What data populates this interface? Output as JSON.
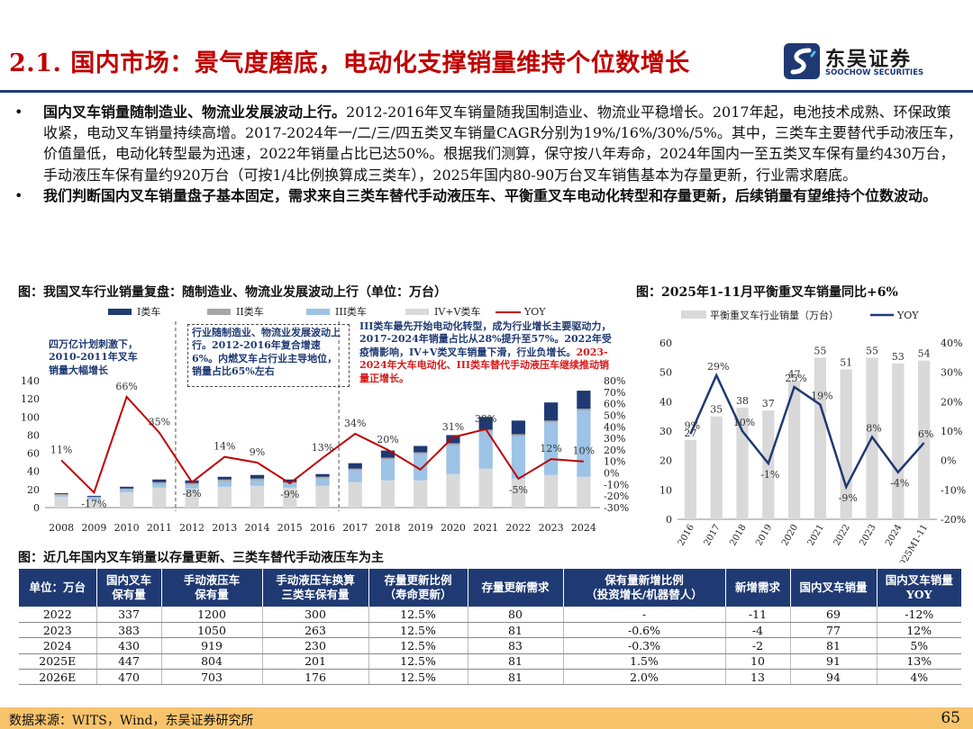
{
  "header": {
    "title": "2.1. 国内市场：景气度磨底，电动化支撑销量维持个位数增长",
    "logo_text": "东吴证券",
    "logo_sub": "SOOCHOW SECURITIES"
  },
  "bullets": [
    {
      "dot": "•",
      "bold": "国内叉车销量随制造业、物流业发展波动上行。",
      "text": "2012-2016年叉车销量随我国制造业、物流业平稳增长。2017年起，电池技术成熟、环保政策收紧，电动叉车销量持续高增。2017-2024年一/二/三/四五类叉车销量CAGR分别为19%/16%/30%/5%。其中，三类车主要替代手动液压车，价值量低，电动化转型最为迅速，2022年销量占比已达50%。根据我们测算，保守按八年寿命，2024年国内一至五类叉车保有量约430万台，手动液压车保有量约920万台（可按1/4比例换算成三类车），2025年国内80-90万台叉车销售基本为存量更新，行业需求磨底。"
    },
    {
      "dot": "•",
      "bold": "我们判断国内叉车销量盘子基本固定，需求来自三类车替代手动液压车、平衡重叉车电动化转型和存量更新，后续销量有望维持个位数波动。",
      "text": ""
    }
  ],
  "captions": {
    "left": "图：我国叉车行业销量复盘：随制造业、物流业发展波动上行（单位：万台）",
    "right": "图：2025年1-11月平衡重叉车销量同比+6%",
    "table": "图：近几年国内叉车销量以存量更新、三类车替代手动液压车为主"
  },
  "chart_data": [
    {
      "type": "bar",
      "stacked": true,
      "categories": [
        "2008",
        "2009",
        "2010",
        "2011",
        "2012",
        "2013",
        "2014",
        "2015",
        "2016",
        "2017",
        "2018",
        "2019",
        "2020",
        "2021",
        "2022",
        "2023",
        "2024"
      ],
      "series": [
        {
          "name": "IV+V类车",
          "color": "#d9d9d9",
          "values": [
            12,
            9,
            17,
            22,
            21,
            23,
            24,
            22,
            24,
            28,
            30,
            30,
            37,
            43,
            32,
            36,
            34
          ]
        },
        {
          "name": "III类车",
          "color": "#9dc3e6",
          "values": [
            2,
            2,
            3,
            4,
            4,
            6,
            6,
            5,
            8,
            13,
            23,
            29,
            32,
            41,
            47,
            58,
            73
          ]
        },
        {
          "name": "II类车",
          "color": "#a6a6a6",
          "values": [
            1,
            1,
            1,
            2,
            2,
            2,
            2,
            1,
            2,
            2,
            2,
            2,
            2,
            2,
            2,
            2,
            2
          ]
        },
        {
          "name": "I类车",
          "color": "#1f3a73",
          "values": [
            1,
            1,
            2,
            3,
            3,
            3,
            4,
            3,
            3,
            6,
            8,
            7,
            9,
            14,
            15,
            20,
            20
          ]
        }
      ],
      "line": {
        "name": "YOY",
        "color": "#c00000",
        "values": [
          11,
          -17,
          66,
          35,
          -8,
          14,
          9,
          -9,
          13,
          34,
          20,
          3,
          31,
          38,
          -5,
          12,
          10
        ],
        "labels": [
          "11%",
          "-17%",
          "66%",
          "35%",
          "-8%",
          "14%",
          "9%",
          "-9%",
          "13%",
          "34%",
          "20%",
          "",
          "31%",
          "38%",
          "-5%",
          "12%",
          "10%"
        ]
      },
      "ylim": [
        0,
        140
      ],
      "yticks": [
        "0",
        "20",
        "40",
        "60",
        "80",
        "100",
        "120",
        "140"
      ],
      "y2lim": [
        -30,
        80
      ],
      "y2ticks": [
        "-30%",
        "-20%",
        "-10%",
        "0%",
        "10%",
        "20%",
        "30%",
        "40%",
        "50%",
        "60%",
        "70%",
        "80%"
      ],
      "legend": [
        "I类车",
        "II类车",
        "III类车",
        "IV+V类车",
        "YOY"
      ],
      "legend_position": "top",
      "annotations": [
        "四万亿计划刺激下，2010-2011年叉车销量大幅增长",
        "行业随制造业、物流业发展波动上行。2012-2016年复合增速6%。内燃叉车占行业主导地位，销量占比65%左右",
        "III类车最先开始电动化转型，成为行业增长主要驱动力，2017-2024年销量占比从28%提升至57%。2022年受疫情影响，IV+V类叉车销量下滑，行业负增长。",
        "2023-2024年大车电动化、III类车替代手动液压车继续推动销量正增长。"
      ]
    },
    {
      "type": "bar",
      "categories": [
        "2016",
        "2017",
        "2018",
        "2019",
        "2020",
        "2021",
        "2022",
        "2023",
        "2024",
        "2025M1-11"
      ],
      "series": [
        {
          "name": "平衡重叉车行业销量（万台）",
          "color": "#d9d9d9",
          "values": [
            27,
            35,
            38,
            37,
            47,
            55,
            51,
            55,
            53,
            54
          ],
          "labels": [
            "27",
            "35",
            "38",
            "37",
            "47",
            "55",
            "51",
            "55",
            "53",
            "54"
          ]
        }
      ],
      "line": {
        "name": "YOY",
        "color": "#1f3a73",
        "values": [
          9,
          29,
          10,
          -1,
          25,
          19,
          -9,
          8,
          -4,
          6
        ],
        "labels": [
          "9%",
          "29%",
          "10%",
          "-1%",
          "25%",
          "19%",
          "-9%",
          "8%",
          "-4%",
          "6%"
        ]
      },
      "ylim": [
        0,
        60
      ],
      "yticks": [
        "0",
        "10",
        "20",
        "30",
        "40",
        "50",
        "60"
      ],
      "y2lim": [
        -20,
        40
      ],
      "y2ticks": [
        "-20%",
        "-10%",
        "0%",
        "10%",
        "20%",
        "30%",
        "40%"
      ],
      "legend": [
        "平衡重叉车行业销量（万台）",
        "YOY"
      ],
      "legend_position": "top"
    }
  ],
  "table": {
    "headers": [
      "单位：万台",
      "国内叉车\n保有量",
      "手动液压车\n保有量",
      "手动液压车换算\n三类车保有量",
      "存量更新比例\n（寿命更新）",
      "存量更新需求",
      "保有量新增比例\n（投资增长/机器替人）",
      "新增需求",
      "国内叉车销量",
      "国内叉车销量\nYOY"
    ],
    "rows": [
      [
        "2022",
        "337",
        "1200",
        "300",
        "12.5%",
        "80",
        "-",
        "-11",
        "69",
        "-12%"
      ],
      [
        "2023",
        "383",
        "1050",
        "263",
        "12.5%",
        "81",
        "-0.6%",
        "-4",
        "77",
        "12%"
      ],
      [
        "2024",
        "430",
        "919",
        "230",
        "12.5%",
        "83",
        "-0.3%",
        "-2",
        "81",
        "5%"
      ],
      [
        "2025E",
        "447",
        "804",
        "201",
        "12.5%",
        "81",
        "1.5%",
        "10",
        "91",
        "13%"
      ],
      [
        "2026E",
        "470",
        "703",
        "176",
        "12.5%",
        "81",
        "2.0%",
        "13",
        "94",
        "4%"
      ]
    ]
  },
  "footer": {
    "source": "数据来源：WITS，Wind，东吴证券研究所",
    "page": "65"
  }
}
